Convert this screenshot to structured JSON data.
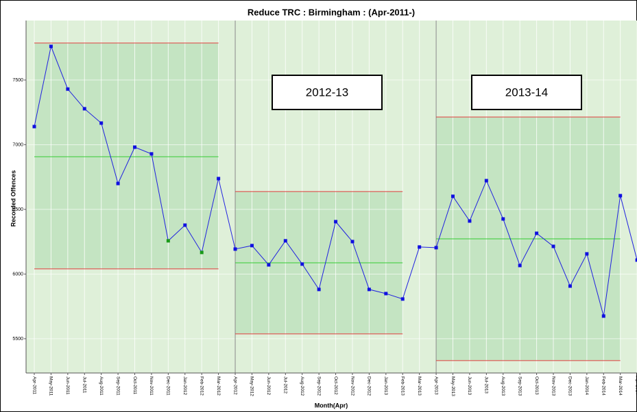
{
  "chart_data": {
    "type": "line",
    "title": "Reduce TRC : Birmingham : (Apr-2011-)",
    "x_label": "Month(Apr)",
    "y_label": "Recorded Offences",
    "categories": [
      "Apr-2011",
      "May-2011",
      "Jun-2011",
      "Jul-2011",
      "Aug-2011",
      "Sep-2011",
      "Oct-2011",
      "Nov-2011",
      "Dec-2011",
      "Jan-2012",
      "Feb-2012",
      "Mar-2012",
      "Apr-2012",
      "May-2012",
      "Jun-2012",
      "Jul-2012",
      "Aug-2012",
      "Sep-2012",
      "Oct-2012",
      "Nov-2012",
      "Dec-2012",
      "Jan-2013",
      "Feb-2013",
      "Mar-2013",
      "Apr-2013",
      "May-2013",
      "Jun-2013",
      "Jul-2013",
      "Aug-2013",
      "Sep-2013",
      "Oct-2013",
      "Nov-2013",
      "Dec-2013",
      "Jan-2014",
      "Feb-2014",
      "Mar-2014",
      "Apr-2014"
    ],
    "values": [
      7140,
      7760,
      7430,
      7278,
      7167,
      6700,
      6981,
      6929,
      6257,
      6378,
      6167,
      6738,
      6193,
      6220,
      6071,
      6257,
      6077,
      5881,
      6405,
      6251,
      5881,
      5849,
      5807,
      6209,
      6204,
      6601,
      6410,
      6722,
      6426,
      6066,
      6315,
      6214,
      5907,
      6156,
      5675,
      6606,
      6108
    ],
    "color": "#1f1fe0",
    "marker_colors": [
      "#1010e0",
      "#1010e0",
      "#1010e0",
      "#1010e0",
      "#1010e0",
      "#1010e0",
      "#1010e0",
      "#1010e0",
      "#1a9a1a",
      "#1010e0",
      "#1a9a1a",
      "#1010e0",
      "#1010e0",
      "#1010e0",
      "#1010e0",
      "#1010e0",
      "#1010e0",
      "#1010e0",
      "#1010e0",
      "#1010e0",
      "#1010e0",
      "#1010e0",
      "#1010e0",
      "#1010e0",
      "#1010e0",
      "#1010e0",
      "#1010e0",
      "#1010e0",
      "#1010e0",
      "#1010e0",
      "#1010e0",
      "#1010e0",
      "#1010e0",
      "#1010e0",
      "#1010e0",
      "#1010e0",
      "#1010e0"
    ],
    "phases": [
      {
        "start": "Apr-2011",
        "end": "Mar-2012",
        "ucl": 7786,
        "mean": 6907,
        "lcl": 6040
      },
      {
        "start": "Apr-2012",
        "end": "Feb-2013",
        "ucl": 6638,
        "mean": 6087,
        "lcl": 5537
      },
      {
        "start": "Apr-2013",
        "end": "Mar-2014",
        "ucl": 7214,
        "mean": 6272,
        "lcl": 5331
      }
    ],
    "limit_color": "#e03c3c",
    "mean_color": "#33cc33",
    "band_color": "#c4e4c2",
    "annotations": [
      {
        "text": "2012-13"
      },
      {
        "text": "2013-14"
      }
    ],
    "ylim": [
      5235,
      7960
    ],
    "yticks": [
      5500,
      6000,
      6500,
      7000,
      7500
    ]
  }
}
